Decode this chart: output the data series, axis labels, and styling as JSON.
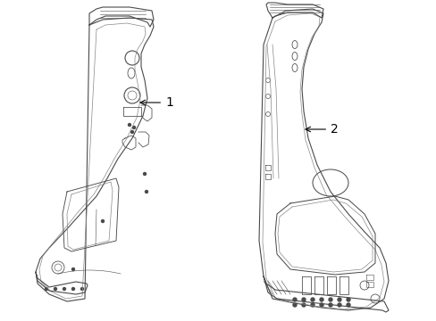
{
  "background_color": "#ffffff",
  "figure_width": 4.89,
  "figure_height": 3.6,
  "dpi": 100,
  "line_color": "#4a4a4a",
  "line_color2": "#888888",
  "label1_text": "1",
  "label2_text": "2",
  "font_size": 10
}
